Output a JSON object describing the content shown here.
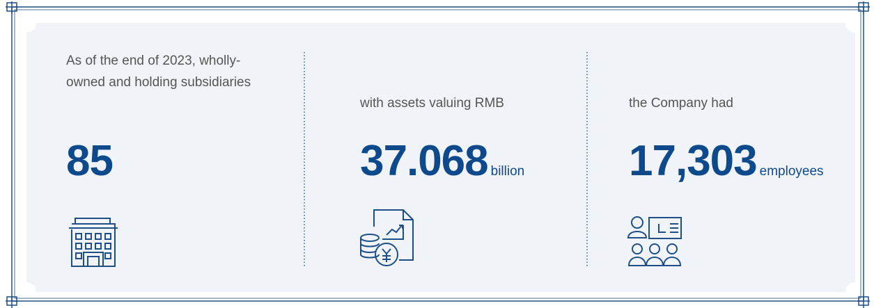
{
  "stats": [
    {
      "label": "As of the end of 2023, wholly-owned and holding subsidiaries",
      "number": "85"
    },
    {
      "label": "with assets valuing RMB",
      "number": "37.068",
      "unit": "billion"
    },
    {
      "label": "the Company had",
      "number": "17,303",
      "unit": "employees"
    }
  ]
}
